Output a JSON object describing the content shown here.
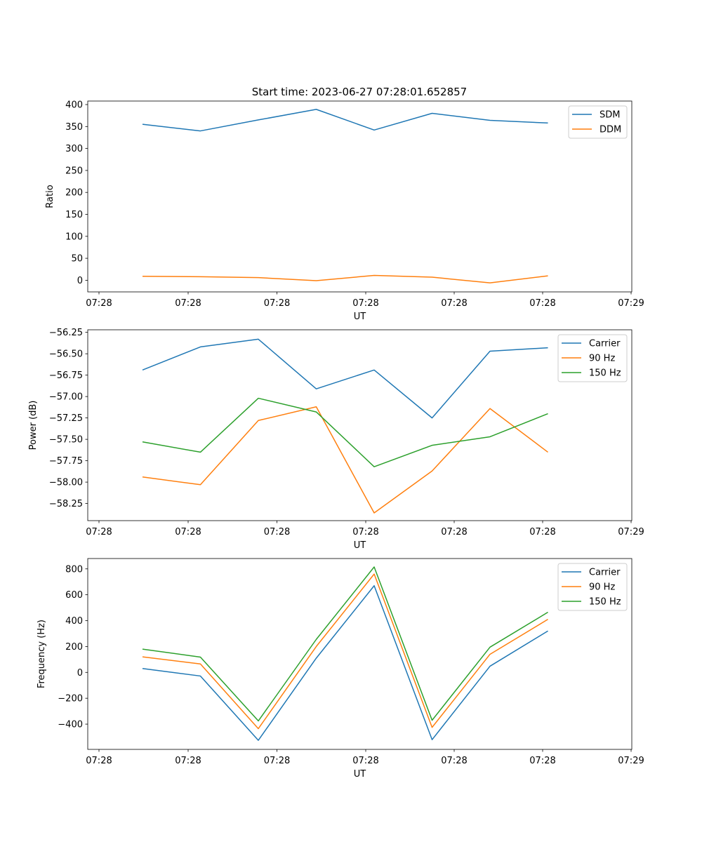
{
  "figure_title": "Start time: 2023-06-27 07:28:01.652857",
  "chart_data": [
    {
      "type": "line",
      "xlabel": "UT",
      "ylabel": "Ratio",
      "xtick_labels": [
        "07:28",
        "07:28",
        "07:28",
        "07:28",
        "07:28",
        "07:28",
        "07:29"
      ],
      "ylim": [
        -26.5,
        408.0
      ],
      "yticks": [
        0,
        50,
        100,
        150,
        200,
        250,
        300,
        350,
        400
      ],
      "ytick_labels": [
        "0",
        "50",
        "100",
        "150",
        "200",
        "250",
        "300",
        "350",
        "400"
      ],
      "legend": "upper right",
      "series": [
        {
          "name": "SDM",
          "color": "#1f77b4",
          "values": [
            355,
            340,
            365,
            389,
            342,
            380,
            364,
            358
          ]
        },
        {
          "name": "DDM",
          "color": "#ff7f0e",
          "values": [
            9,
            8,
            6,
            -1,
            11,
            7,
            -6,
            10
          ]
        }
      ]
    },
    {
      "type": "line",
      "xlabel": "UT",
      "ylabel": "Power (dB)",
      "xtick_labels": [
        "07:28",
        "07:28",
        "07:28",
        "07:28",
        "07:28",
        "07:28",
        "07:29"
      ],
      "ylim": [
        -58.45,
        -56.22
      ],
      "yticks": [
        -58.25,
        -58.0,
        -57.75,
        -57.5,
        -57.25,
        -57.0,
        -56.75,
        -56.5,
        -56.25
      ],
      "ytick_labels": [
        "−58.25",
        "−58.00",
        "−57.75",
        "−57.50",
        "−57.25",
        "−57.00",
        "−56.75",
        "−56.50",
        "−56.25"
      ],
      "legend": "upper right",
      "series": [
        {
          "name": "Carrier",
          "color": "#1f77b4",
          "values": [
            -56.69,
            -56.42,
            -56.33,
            -56.91,
            -56.69,
            -57.25,
            -56.47,
            -56.43
          ]
        },
        {
          "name": "90 Hz",
          "color": "#ff7f0e",
          "values": [
            -57.94,
            -58.03,
            -57.28,
            -57.12,
            -58.36,
            -57.87,
            -57.14,
            -57.65
          ]
        },
        {
          "name": "150 Hz",
          "color": "#2ca02c",
          "values": [
            -57.53,
            -57.65,
            -57.02,
            -57.18,
            -57.82,
            -57.57,
            -57.47,
            -57.2
          ]
        }
      ]
    },
    {
      "type": "line",
      "xlabel": "UT",
      "ylabel": "Frequency (Hz)",
      "xtick_labels": [
        "07:28",
        "07:28",
        "07:28",
        "07:28",
        "07:28",
        "07:28",
        "07:29"
      ],
      "ylim": [
        -595,
        880
      ],
      "yticks": [
        -400,
        -200,
        0,
        200,
        400,
        600,
        800
      ],
      "ytick_labels": [
        "−400",
        "−200",
        "0",
        "200",
        "400",
        "600",
        "800"
      ],
      "legend": "upper right",
      "series": [
        {
          "name": "Carrier",
          "color": "#1f77b4",
          "values": [
            30,
            -28,
            -525,
            110,
            670,
            -520,
            48,
            320
          ]
        },
        {
          "name": "90 Hz",
          "color": "#ff7f0e",
          "values": [
            120,
            65,
            -435,
            200,
            760,
            -425,
            140,
            410
          ]
        },
        {
          "name": "150 Hz",
          "color": "#2ca02c",
          "values": [
            180,
            118,
            -375,
            255,
            815,
            -370,
            195,
            465
          ]
        }
      ]
    }
  ]
}
